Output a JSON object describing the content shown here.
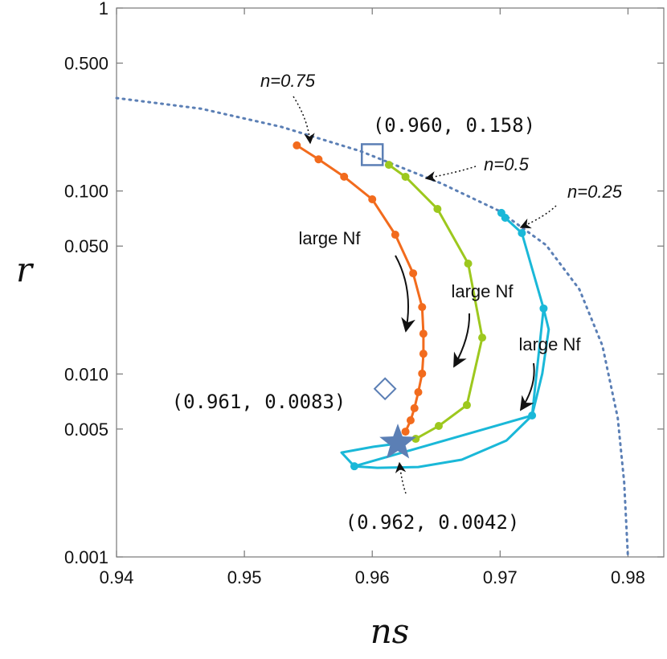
{
  "chart_data": {
    "type": "line",
    "x_label": "ns",
    "y_label": "r",
    "xlim": [
      0.94,
      0.9828
    ],
    "ylim": [
      0.001,
      1
    ],
    "log_y": true,
    "xticks": [
      0.94,
      0.95,
      0.96,
      0.97,
      0.98
    ],
    "yticks": [
      0.001,
      0.005,
      {
        "value": 0.01,
        "label": "0.010"
      },
      {
        "value": 0.05,
        "label": "0.050"
      },
      {
        "value": 0.1,
        "label": "0.100"
      },
      {
        "value": 0.5,
        "label": "0.500"
      },
      1
    ],
    "series": [
      {
        "color": "#5b7fb5",
        "style": "dotted",
        "dots": false,
        "x": [
          0.94,
          0.9466,
          0.9529,
          0.9591,
          0.9654,
          0.9699,
          0.9736,
          0.9762,
          0.978,
          0.9792,
          0.9797,
          0.98
        ],
        "values": [
          0.322,
          0.282,
          0.224,
          0.165,
          0.11,
          0.078,
          0.0506,
          0.029,
          0.0143,
          0.00575,
          0.00256,
          0.001
        ]
      },
      {
        "name": "n=0.75",
        "color": "#f26b1d",
        "style": "solid",
        "dots": true,
        "x": [
          0.9541,
          0.9558,
          0.9578,
          0.96,
          0.9618,
          0.9632,
          0.9639,
          0.964,
          0.964,
          0.9639,
          0.9636,
          0.9633,
          0.963,
          0.9626
        ],
        "values": [
          0.1775,
          0.149,
          0.1197,
          0.0901,
          0.0577,
          0.0355,
          0.0232,
          0.0166,
          0.0129,
          0.01005,
          0.00795,
          0.0065,
          0.00558,
          0.00484
        ]
      },
      {
        "name": "n=0.5",
        "color": "#9dc81e",
        "style": "solid",
        "dots": true,
        "x": [
          0.9613,
          0.9626,
          0.9651,
          0.9675,
          0.9686,
          0.9674,
          0.9652,
          0.9634
        ],
        "values": [
          0.139,
          0.1196,
          0.0798,
          0.0401,
          0.0158,
          0.00676,
          0.0052,
          0.00442
        ]
      },
      {
        "name": "n=0.25",
        "color": "#1ab8d8",
        "style": "solid",
        "dots": true,
        "x": [
          0.9701,
          0.9704,
          0.9717,
          0.9734,
          0.9725,
          0.9586
        ],
        "values": [
          0.0759,
          0.0714,
          0.0589,
          0.0228,
          0.00593,
          0.00313
        ]
      },
      {
        "color": "#1ab8d8",
        "style": "solid",
        "dots": false,
        "x": [
          0.9734,
          0.9738,
          0.9733,
          0.9725,
          0.9705,
          0.967,
          0.9636,
          0.9604,
          0.9586,
          0.9576,
          0.9601,
          0.9619
        ],
        "values": [
          0.0228,
          0.0175,
          0.01004,
          0.00593,
          0.00433,
          0.0034,
          0.0031,
          0.00307,
          0.00313,
          0.00372,
          0.004,
          0.00416
        ]
      }
    ],
    "markers": [
      {
        "x": 0.96,
        "y": 0.158,
        "label": "(0.960, 0.158)",
        "shape": "square",
        "color": "#5b7fb5"
      },
      {
        "x": 0.961,
        "y": 0.0083,
        "label": "(0.961, 0.0083)",
        "shape": "diamond",
        "color": "#5b7fb5"
      },
      {
        "x": 0.962,
        "y": 0.0042,
        "label": "(0.962, 0.0042)",
        "shape": "star",
        "color": "#5b7fb5"
      }
    ],
    "annotations": [
      "large Nf",
      "large Nf",
      "large Nf"
    ]
  }
}
